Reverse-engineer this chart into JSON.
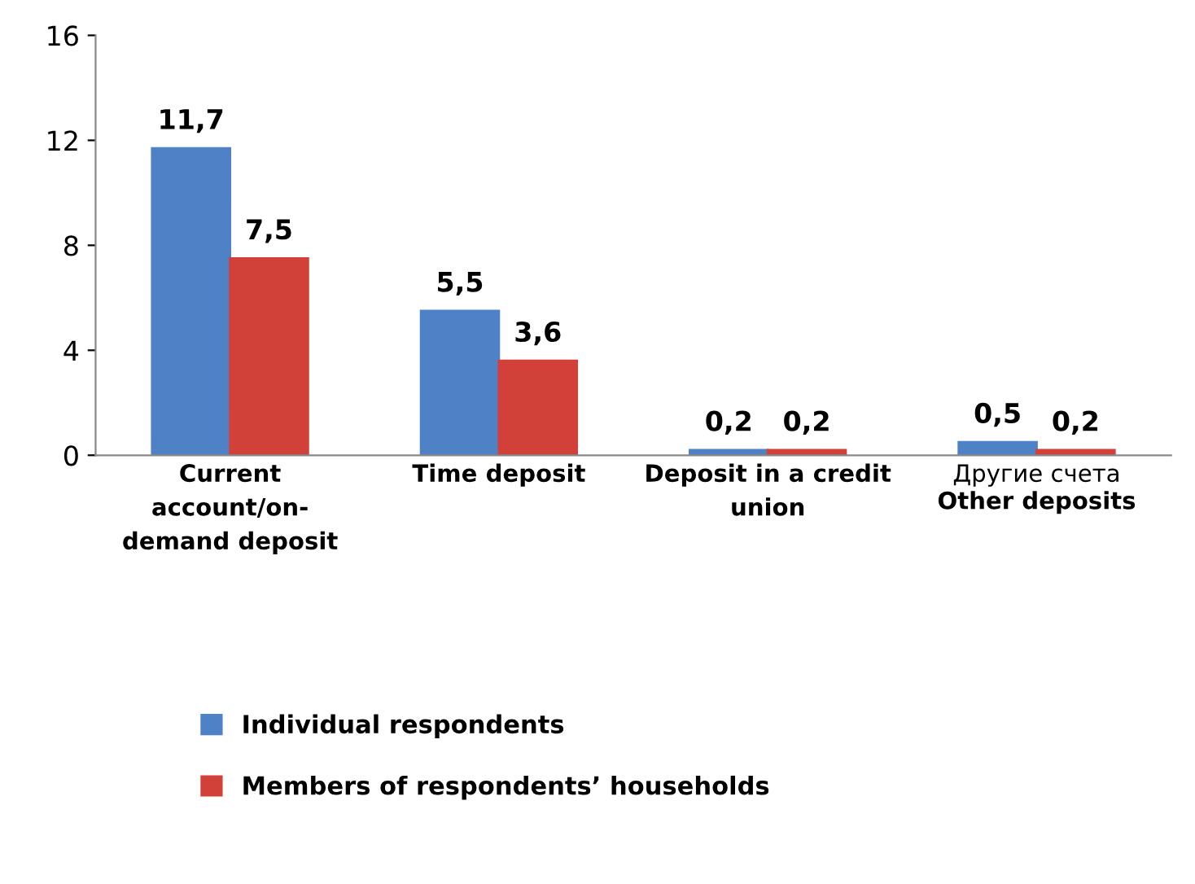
{
  "chart_data": {
    "type": "bar",
    "categories": [
      "Current\naccount/on-\ndemand deposit",
      "Time deposit",
      "Deposit in a credit\nunion",
      "Other deposits"
    ],
    "series": [
      {
        "name": "Individual respondents",
        "color": "#4f81c7",
        "values": [
          11.7,
          5.5,
          0.2,
          0.5
        ],
        "value_labels": [
          "11,7",
          "5,5",
          "0,2",
          "0,5"
        ]
      },
      {
        "name": "Members of respondents’ households",
        "color": "#d2403a",
        "values": [
          7.5,
          3.6,
          0.2,
          0.2
        ],
        "value_labels": [
          "7,5",
          "3,6",
          "0,2",
          "0,2"
        ]
      }
    ],
    "ylim": [
      0,
      16
    ],
    "yticks": [
      0,
      4,
      8,
      12,
      16
    ],
    "grid": false,
    "legend": "bottom left",
    "annotations": [
      "Другие счета"
    ]
  }
}
